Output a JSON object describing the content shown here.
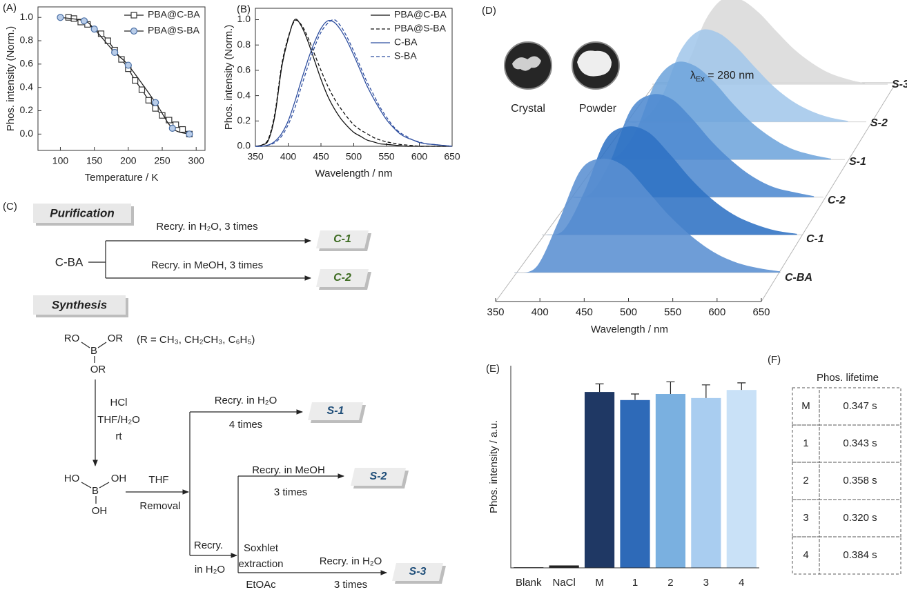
{
  "panel_labels": [
    "(A)",
    "(B)",
    "(C)",
    "(D)",
    "(E)",
    "(F)"
  ],
  "chart_data": [
    {
      "type": "line",
      "xlabel": "Temperature / K",
      "ylabel": "Phos. intensity (Norm.)",
      "xlim": [
        67,
        313
      ],
      "ylim": [
        -0.14,
        1.09
      ],
      "xticks": [
        100,
        150,
        200,
        250,
        300
      ],
      "yticks": [
        {
          "value": 0,
          "label": "0.0"
        },
        {
          "value": 0.2,
          "label": "0.2"
        },
        {
          "value": 0.4,
          "label": "0.4"
        },
        {
          "value": 0.6,
          "label": "0.6"
        },
        {
          "value": 0.8,
          "label": "0.8"
        },
        {
          "value": 1,
          "label": "1.0"
        }
      ],
      "legend": "upper right",
      "series": [
        {
          "name": "PBA@C-BA",
          "color": "#333333",
          "marker": "square",
          "x": [
            112,
            120,
            130,
            140,
            160,
            170,
            180,
            190,
            200,
            210,
            220,
            230,
            240,
            250,
            260,
            270,
            280,
            290
          ],
          "values": [
            1.0,
            0.99,
            0.96,
            0.94,
            0.86,
            0.8,
            0.72,
            0.64,
            0.56,
            0.46,
            0.38,
            0.29,
            0.22,
            0.16,
            0.12,
            0.08,
            0.04,
            0.0
          ]
        },
        {
          "name": "PBA@S-BA",
          "color": "#4a6fa5",
          "marker": "circle",
          "x": [
            100,
            135,
            150,
            180,
            200,
            240,
            265,
            290
          ],
          "values": [
            1.0,
            0.97,
            0.9,
            0.7,
            0.59,
            0.27,
            0.05,
            0.0
          ]
        }
      ]
    },
    {
      "type": "line",
      "xlabel": "Wavelength / nm",
      "ylabel": "Phos. intensity (Norm.)",
      "xlim": [
        350,
        650
      ],
      "ylim": [
        0,
        1.09
      ],
      "xticks": [
        350,
        400,
        450,
        500,
        550,
        600,
        650
      ],
      "yticks": [
        {
          "value": 0,
          "label": "0.0"
        },
        {
          "value": 0.2,
          "label": "0.2"
        },
        {
          "value": 0.4,
          "label": "0.4"
        },
        {
          "value": 0.6,
          "label": "0.6"
        },
        {
          "value": 0.8,
          "label": "0.8"
        },
        {
          "value": 1,
          "label": "1.0"
        }
      ],
      "legend": "upper right",
      "x": [
        350,
        360,
        370,
        380,
        390,
        400,
        410,
        420,
        430,
        440,
        450,
        460,
        470,
        480,
        490,
        500,
        510,
        520,
        530,
        540,
        550,
        560,
        570,
        580,
        590,
        600,
        610,
        620,
        630,
        640,
        650
      ],
      "series": [
        {
          "name": "PBA@C-BA",
          "color": "#111111",
          "dash": false,
          "values": [
            0,
            0.01,
            0.05,
            0.25,
            0.62,
            0.85,
            1.0,
            0.95,
            0.83,
            0.68,
            0.53,
            0.4,
            0.3,
            0.22,
            0.16,
            0.11,
            0.08,
            0.05,
            0.035,
            0.02,
            0.015,
            0.01,
            0.005,
            0,
            0,
            0,
            0,
            0,
            0,
            0,
            0
          ]
        },
        {
          "name": "PBA@S-BA",
          "color": "#111111",
          "dash": true,
          "values": [
            0,
            0.01,
            0.06,
            0.27,
            0.64,
            0.86,
            0.99,
            0.96,
            0.86,
            0.73,
            0.6,
            0.48,
            0.38,
            0.3,
            0.23,
            0.17,
            0.13,
            0.1,
            0.07,
            0.05,
            0.035,
            0.025,
            0.015,
            0.01,
            0.005,
            0,
            0,
            0,
            0,
            0,
            0
          ]
        },
        {
          "name": "C-BA",
          "color": "#2f4fa0",
          "dash": false,
          "values": [
            0,
            0,
            0.01,
            0.04,
            0.1,
            0.2,
            0.35,
            0.52,
            0.68,
            0.82,
            0.93,
            0.99,
            0.98,
            0.92,
            0.83,
            0.72,
            0.6,
            0.48,
            0.38,
            0.29,
            0.21,
            0.15,
            0.1,
            0.07,
            0.05,
            0.03,
            0.02,
            0.015,
            0.01,
            0.005,
            0
          ]
        },
        {
          "name": "S-BA",
          "color": "#2f4fa0",
          "dash": true,
          "values": [
            0,
            0,
            0.01,
            0.03,
            0.08,
            0.17,
            0.3,
            0.47,
            0.63,
            0.78,
            0.9,
            0.97,
            1.0,
            0.95,
            0.86,
            0.75,
            0.63,
            0.51,
            0.41,
            0.31,
            0.23,
            0.16,
            0.11,
            0.08,
            0.05,
            0.035,
            0.02,
            0.015,
            0.01,
            0.005,
            0
          ]
        }
      ]
    },
    {
      "type": "waterfall",
      "xlabel": "Wavelength / nm",
      "xlim": [
        350,
        650
      ],
      "xticks": [
        350,
        400,
        450,
        500,
        550,
        600,
        650
      ],
      "annotation": [
        "λ",
        "Ex",
        " = 280 nm"
      ],
      "insets": [
        "Crystal",
        "Powder"
      ],
      "x": [
        350,
        375,
        400,
        425,
        450,
        475,
        500,
        525,
        550,
        575,
        600,
        625,
        650
      ],
      "series": [
        {
          "name": "C-BA",
          "color": "#5a8fd1",
          "label_color": "#3d6b21",
          "values": [
            0,
            0.05,
            0.45,
            0.9,
            1.0,
            0.93,
            0.72,
            0.5,
            0.32,
            0.18,
            0.09,
            0.04,
            0.01
          ]
        },
        {
          "name": "C-1",
          "color": "#2f72c4",
          "label_color": "#3d6b21",
          "values": [
            0,
            0.04,
            0.4,
            0.88,
            1.0,
            0.95,
            0.75,
            0.52,
            0.33,
            0.19,
            0.1,
            0.04,
            0.01
          ]
        },
        {
          "name": "C-2",
          "color": "#4e8ad0",
          "label_color": "#3d6b21",
          "values": [
            0,
            0.03,
            0.35,
            0.85,
            1.0,
            0.96,
            0.77,
            0.54,
            0.35,
            0.2,
            0.1,
            0.05,
            0.01
          ]
        },
        {
          "name": "S-1",
          "color": "#6fa5dc",
          "label_color": "#1f4e79",
          "values": [
            0,
            0.03,
            0.3,
            0.8,
            1.0,
            0.97,
            0.8,
            0.57,
            0.37,
            0.22,
            0.11,
            0.05,
            0.01
          ]
        },
        {
          "name": "S-2",
          "color": "#a3c7ea",
          "label_color": "#1f4e79",
          "values": [
            0,
            0.02,
            0.28,
            0.78,
            1.0,
            0.98,
            0.82,
            0.6,
            0.39,
            0.23,
            0.12,
            0.05,
            0.01
          ]
        },
        {
          "name": "S-3",
          "color": "#d9d9d9",
          "label_color": "#1f4e79",
          "values": [
            0,
            0.02,
            0.25,
            0.75,
            1.0,
            0.99,
            0.84,
            0.62,
            0.41,
            0.25,
            0.13,
            0.06,
            0.01
          ]
        }
      ]
    },
    {
      "type": "bar",
      "ylabel": "Phos. intensity / a.u.",
      "ylim": [
        0,
        100
      ],
      "categories": [
        "Blank",
        "NaCl",
        "M",
        "1",
        "2",
        "3",
        "4"
      ],
      "values": [
        0.3,
        1.2,
        87,
        83,
        86,
        84,
        88
      ],
      "errors": [
        0,
        0,
        4,
        3,
        6,
        6.5,
        3.5
      ],
      "colors": [
        "#222222",
        "#222222",
        "#1f3864",
        "#2e6ab8",
        "#7ab0e0",
        "#a9cdf0",
        "#c9e1f7"
      ]
    }
  ],
  "table": {
    "title": "Phos. lifetime",
    "rows": [
      [
        "M",
        "0.347 s"
      ],
      [
        "1",
        "0.343 s"
      ],
      [
        "2",
        "0.358 s"
      ],
      [
        "3",
        "0.320 s"
      ],
      [
        "4",
        "0.384 s"
      ]
    ]
  },
  "scheme": {
    "purification": "Purification",
    "synthesis": "Synthesis",
    "start": "C-BA",
    "conditions": [
      "Recry. in H₂O, 3 times",
      "Recry. in MeOH, 3 times",
      "(R = CH₃, CH₂CH₃, C₆H₅)",
      "HCl",
      "THF/H₂O",
      "rt",
      "THF",
      "Removal",
      "Recry. in H₂O",
      "4 times",
      "Recry.",
      "in H₂O",
      "Recry. in MeOH",
      "3 times",
      "Soxhlet",
      "extraction",
      "EtOAc",
      "Recry. in H₂O",
      "3 times"
    ],
    "products": [
      "C-1",
      "C-2",
      "S-1",
      "S-2",
      "S-3"
    ],
    "borate_atoms": [
      "RO",
      "OR",
      "B",
      "OR"
    ],
    "boric_acid_atoms": [
      "HO",
      "OH",
      "B",
      "OH"
    ]
  }
}
